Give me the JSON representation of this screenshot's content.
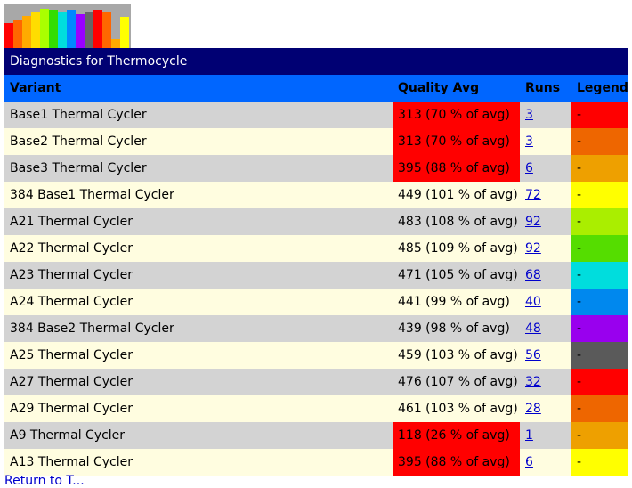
{
  "logo": {
    "bars": [
      {
        "color": "#ff0000",
        "level": 0.55
      },
      {
        "color": "#ff6600",
        "level": 0.62
      },
      {
        "color": "#ffaa00",
        "level": 0.72
      },
      {
        "color": "#ffdd00",
        "level": 0.82
      },
      {
        "color": "#aaff00",
        "level": 0.88
      },
      {
        "color": "#33dd00",
        "level": 0.85
      },
      {
        "color": "#00dddd",
        "level": 0.8
      },
      {
        "color": "#0088ff",
        "level": 0.85
      },
      {
        "color": "#9900ff",
        "level": 0.76
      },
      {
        "color": "#666666",
        "level": 0.8
      },
      {
        "color": "#ff0000",
        "level": 0.86
      },
      {
        "color": "#ff6600",
        "level": 0.82
      },
      {
        "color": "#ffaa00",
        "level": 0.2
      },
      {
        "color": "#ffff00",
        "level": 0.7
      }
    ]
  },
  "page": {
    "title": "Diagnostics for Thermocycle",
    "footer_link": "Return to T..."
  },
  "table": {
    "headers": {
      "variant": "Variant",
      "quality": "Quality Avg",
      "runs": "Runs",
      "legend": "Legend"
    },
    "rows": [
      {
        "variant": "Base1 Thermal Cycler",
        "quality": "313 (70 % of avg)",
        "runs": "3",
        "legend": "-",
        "legend_color": "#ff0000",
        "low": true
      },
      {
        "variant": "Base2 Thermal Cycler",
        "quality": "313 (70 % of avg)",
        "runs": "3",
        "legend": "-",
        "legend_color": "#ee6600",
        "low": true
      },
      {
        "variant": "Base3 Thermal Cycler",
        "quality": "395 (88 % of avg)",
        "runs": "6",
        "legend": "-",
        "legend_color": "#eea000",
        "low": true
      },
      {
        "variant": "384 Base1 Thermal Cycler",
        "quality": "449 (101 % of avg)",
        "runs": "72",
        "legend": "-",
        "legend_color": "#ffff00",
        "low": false
      },
      {
        "variant": "A21 Thermal Cycler",
        "quality": "483 (108 % of avg)",
        "runs": "92",
        "legend": "-",
        "legend_color": "#aaee00",
        "low": false
      },
      {
        "variant": "A22 Thermal Cycler",
        "quality": "485 (109 % of avg)",
        "runs": "92",
        "legend": "-",
        "legend_color": "#55dd00",
        "low": false
      },
      {
        "variant": "A23 Thermal Cycler",
        "quality": "471 (105 % of avg)",
        "runs": "68",
        "legend": "-",
        "legend_color": "#00dddd",
        "low": false
      },
      {
        "variant": "A24 Thermal Cycler",
        "quality": "441 (99 % of avg)",
        "runs": "40",
        "legend": "-",
        "legend_color": "#0088ee",
        "low": false
      },
      {
        "variant": "384 Base2 Thermal Cycler",
        "quality": "439 (98 % of avg)",
        "runs": "48",
        "legend": "-",
        "legend_color": "#9900ee",
        "low": false
      },
      {
        "variant": "A25 Thermal Cycler",
        "quality": "459 (103 % of avg)",
        "runs": "56",
        "legend": "-",
        "legend_color": "#5a5a5a",
        "low": false
      },
      {
        "variant": "A27 Thermal Cycler",
        "quality": "476 (107 % of avg)",
        "runs": "32",
        "legend": "-",
        "legend_color": "#ff0000",
        "low": false
      },
      {
        "variant": "A29 Thermal Cycler",
        "quality": "461 (103 % of avg)",
        "runs": "28",
        "legend": "-",
        "legend_color": "#ee6600",
        "low": false
      },
      {
        "variant": "A9 Thermal Cycler",
        "quality": "118 (26 % of avg)",
        "runs": "1",
        "legend": "-",
        "legend_color": "#eea000",
        "low": true
      },
      {
        "variant": "A13 Thermal Cycler",
        "quality": "395 (88 % of avg)",
        "runs": "6",
        "legend": "-",
        "legend_color": "#ffff00",
        "low": true
      }
    ]
  }
}
